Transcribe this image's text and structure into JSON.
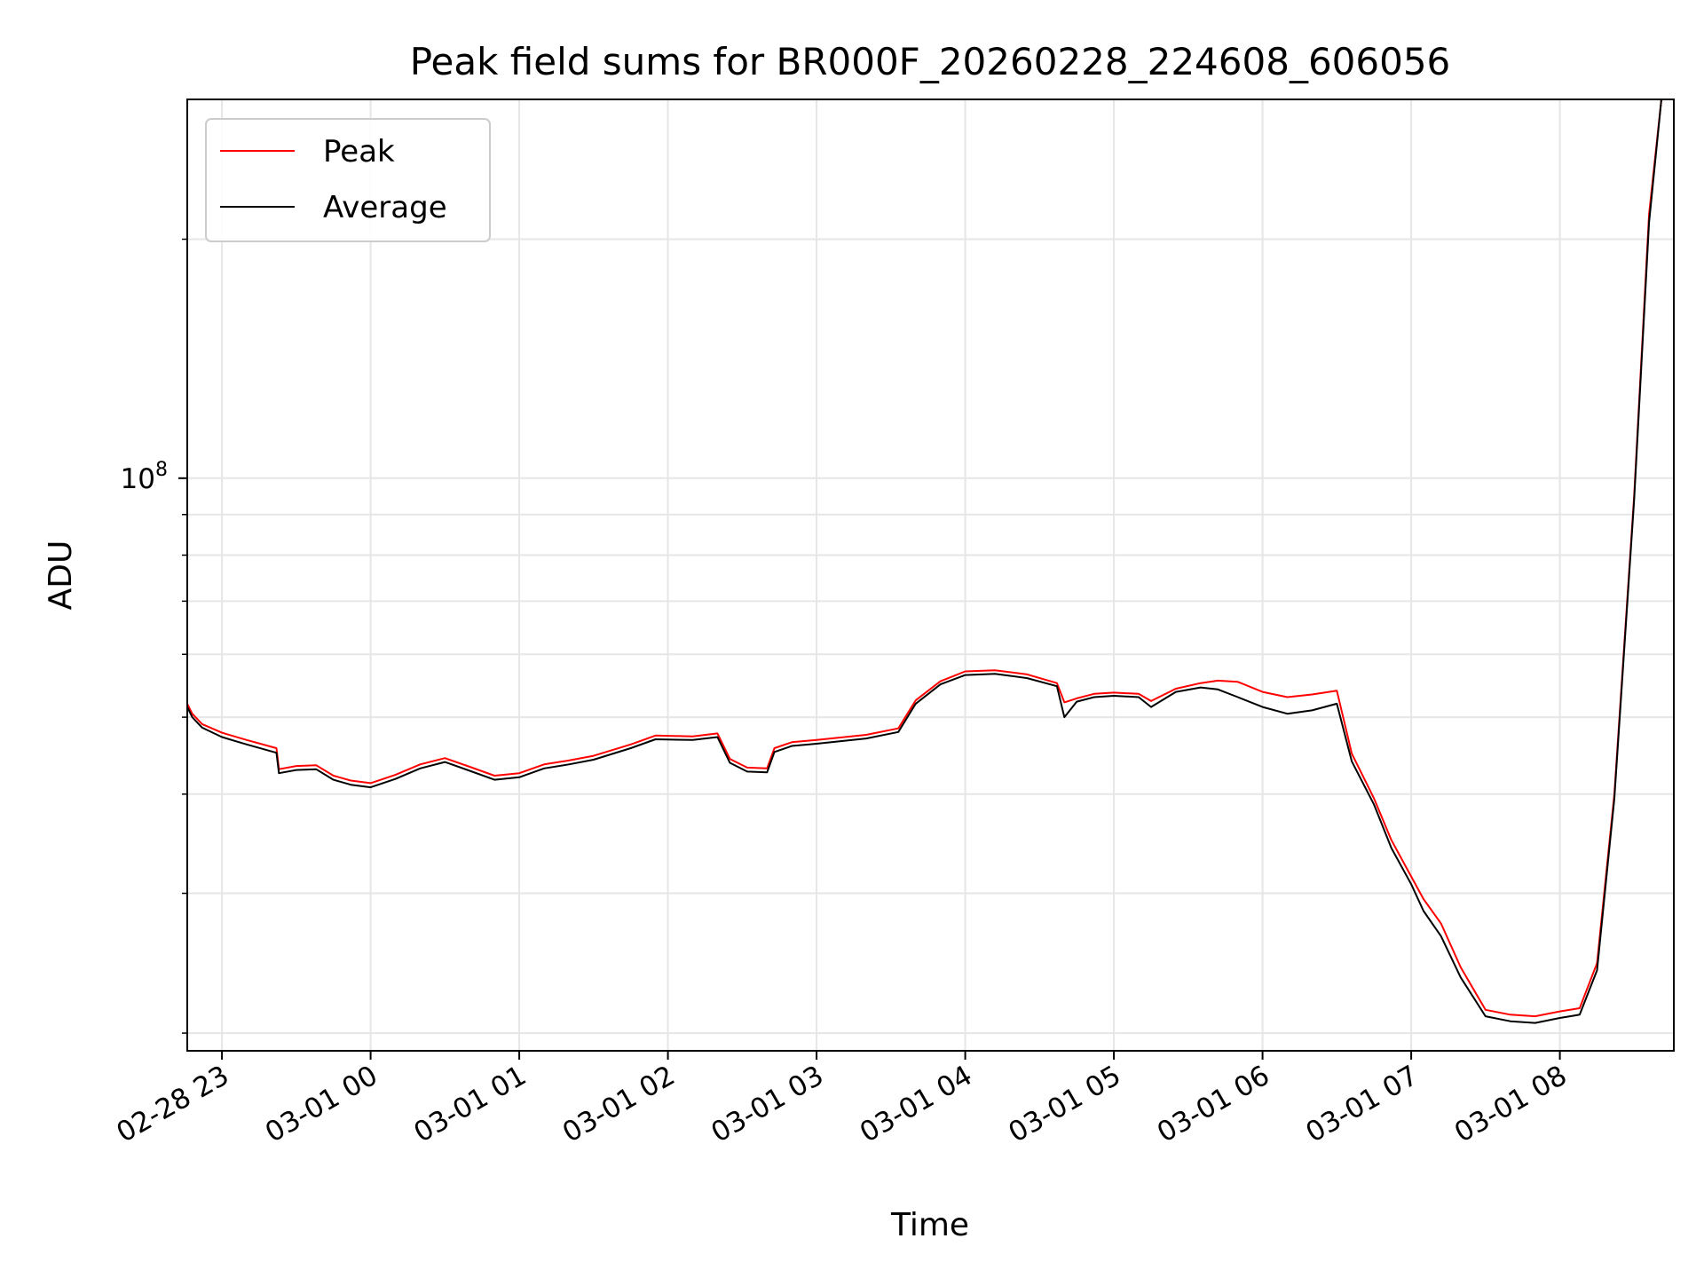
{
  "chart_data": {
    "type": "line",
    "title": "Peak field sums for BR000F_20260228_224608_606056",
    "xlabel": "Time",
    "ylabel": "ADU",
    "yscale": "log",
    "grid": true,
    "legend_position": "top-left",
    "xlim": [
      "2026-02-28 22:46",
      "2026-03-01 08:46"
    ],
    "ylim": [
      19000000,
      300000000
    ],
    "x_ticks": [
      {
        "value": "2026-02-28 23:00",
        "label": "02-28 23"
      },
      {
        "value": "2026-03-01 00:00",
        "label": "03-01 00"
      },
      {
        "value": "2026-03-01 01:00",
        "label": "03-01 01"
      },
      {
        "value": "2026-03-01 02:00",
        "label": "03-01 02"
      },
      {
        "value": "2026-03-01 03:00",
        "label": "03-01 03"
      },
      {
        "value": "2026-03-01 04:00",
        "label": "03-01 04"
      },
      {
        "value": "2026-03-01 05:00",
        "label": "03-01 05"
      },
      {
        "value": "2026-03-01 06:00",
        "label": "03-01 06"
      },
      {
        "value": "2026-03-01 07:00",
        "label": "03-01 07"
      },
      {
        "value": "2026-03-01 08:00",
        "label": "03-01 08"
      }
    ],
    "y_major_ticks": [
      {
        "value": 100000000,
        "base": "10",
        "exponent": "8"
      }
    ],
    "y_minor_ticks": [
      20000000,
      30000000,
      40000000,
      50000000,
      60000000,
      70000000,
      80000000,
      90000000,
      200000000
    ],
    "series": [
      {
        "name": "Peak",
        "color": "#ff0000",
        "x": [
          "2026-02-28 22:46",
          "2026-02-28 22:48",
          "2026-02-28 22:52",
          "2026-02-28 23:00",
          "2026-02-28 23:10",
          "2026-02-28 23:22",
          "2026-02-28 23:23",
          "2026-02-28 23:30",
          "2026-02-28 23:38",
          "2026-02-28 23:45",
          "2026-02-28 23:52",
          "2026-03-01 00:00",
          "2026-03-01 00:10",
          "2026-03-01 00:20",
          "2026-03-01 00:30",
          "2026-03-01 00:40",
          "2026-03-01 00:50",
          "2026-03-01 01:00",
          "2026-03-01 01:10",
          "2026-03-01 01:20",
          "2026-03-01 01:30",
          "2026-03-01 01:45",
          "2026-03-01 01:55",
          "2026-03-01 02:10",
          "2026-03-01 02:20",
          "2026-03-01 02:25",
          "2026-03-01 02:32",
          "2026-03-01 02:40",
          "2026-03-01 02:43",
          "2026-03-01 02:50",
          "2026-03-01 03:00",
          "2026-03-01 03:20",
          "2026-03-01 03:33",
          "2026-03-01 03:40",
          "2026-03-01 03:50",
          "2026-03-01 04:00",
          "2026-03-01 04:12",
          "2026-03-01 04:25",
          "2026-03-01 04:37",
          "2026-03-01 04:40",
          "2026-03-01 04:45",
          "2026-03-01 04:52",
          "2026-03-01 05:00",
          "2026-03-01 05:10",
          "2026-03-01 05:15",
          "2026-03-01 05:25",
          "2026-03-01 05:35",
          "2026-03-01 05:42",
          "2026-03-01 05:50",
          "2026-03-01 06:00",
          "2026-03-01 06:10",
          "2026-03-01 06:20",
          "2026-03-01 06:30",
          "2026-03-01 06:36",
          "2026-03-01 06:45",
          "2026-03-01 06:52",
          "2026-03-01 07:00",
          "2026-03-01 07:05",
          "2026-03-01 07:12",
          "2026-03-01 07:20",
          "2026-03-01 07:30",
          "2026-03-01 07:40",
          "2026-03-01 07:50",
          "2026-03-01 08:00",
          "2026-03-01 08:08",
          "2026-03-01 08:15",
          "2026-03-01 08:22",
          "2026-03-01 08:30",
          "2026-03-01 08:36",
          "2026-03-01 08:41"
        ],
        "y": [
          52000000,
          50500000,
          49000000,
          47800000,
          46800000,
          45700000,
          43000000,
          43400000,
          43500000,
          42200000,
          41600000,
          41300000,
          42300000,
          43600000,
          44400000,
          43300000,
          42200000,
          42500000,
          43600000,
          44100000,
          44700000,
          46200000,
          47400000,
          47300000,
          47700000,
          44300000,
          43200000,
          43100000,
          45700000,
          46500000,
          46800000,
          47500000,
          48400000,
          52500000,
          55500000,
          57100000,
          57300000,
          56600000,
          55200000,
          52200000,
          52800000,
          53500000,
          53700000,
          53500000,
          52400000,
          54300000,
          55200000,
          55600000,
          55400000,
          53800000,
          53000000,
          53400000,
          54000000,
          45000000,
          39500000,
          35000000,
          31500000,
          29500000,
          27500000,
          24200000,
          21400000,
          21100000,
          21000000,
          21300000,
          21500000,
          24500000,
          40000000,
          95000000,
          215000000,
          300000000
        ]
      },
      {
        "name": "Average",
        "color": "#000000",
        "x": [
          "2026-02-28 22:46",
          "2026-02-28 22:48",
          "2026-02-28 22:52",
          "2026-02-28 23:00",
          "2026-02-28 23:10",
          "2026-02-28 23:22",
          "2026-02-28 23:23",
          "2026-02-28 23:30",
          "2026-02-28 23:38",
          "2026-02-28 23:45",
          "2026-02-28 23:52",
          "2026-03-01 00:00",
          "2026-03-01 00:10",
          "2026-03-01 00:20",
          "2026-03-01 00:30",
          "2026-03-01 00:40",
          "2026-03-01 00:50",
          "2026-03-01 01:00",
          "2026-03-01 01:10",
          "2026-03-01 01:20",
          "2026-03-01 01:30",
          "2026-03-01 01:45",
          "2026-03-01 01:55",
          "2026-03-01 02:10",
          "2026-03-01 02:20",
          "2026-03-01 02:25",
          "2026-03-01 02:32",
          "2026-03-01 02:40",
          "2026-03-01 02:43",
          "2026-03-01 02:50",
          "2026-03-01 03:00",
          "2026-03-01 03:20",
          "2026-03-01 03:33",
          "2026-03-01 03:40",
          "2026-03-01 03:50",
          "2026-03-01 04:00",
          "2026-03-01 04:12",
          "2026-03-01 04:25",
          "2026-03-01 04:37",
          "2026-03-01 04:40",
          "2026-03-01 04:45",
          "2026-03-01 04:52",
          "2026-03-01 05:00",
          "2026-03-01 05:10",
          "2026-03-01 05:15",
          "2026-03-01 05:25",
          "2026-03-01 05:35",
          "2026-03-01 05:42",
          "2026-03-01 05:50",
          "2026-03-01 06:00",
          "2026-03-01 06:10",
          "2026-03-01 06:20",
          "2026-03-01 06:30",
          "2026-03-01 06:36",
          "2026-03-01 06:45",
          "2026-03-01 06:52",
          "2026-03-01 07:00",
          "2026-03-01 07:05",
          "2026-03-01 07:12",
          "2026-03-01 07:20",
          "2026-03-01 07:30",
          "2026-03-01 07:40",
          "2026-03-01 07:50",
          "2026-03-01 08:00",
          "2026-03-01 08:08",
          "2026-03-01 08:15",
          "2026-03-01 08:22",
          "2026-03-01 08:30",
          "2026-03-01 08:36",
          "2026-03-01 08:41"
        ],
        "y": [
          51500000,
          50000000,
          48500000,
          47200000,
          46200000,
          45100000,
          42500000,
          42900000,
          43000000,
          41700000,
          41100000,
          40800000,
          41800000,
          43100000,
          43900000,
          42800000,
          41700000,
          42000000,
          43100000,
          43600000,
          44200000,
          45700000,
          46900000,
          46800000,
          47200000,
          43800000,
          42700000,
          42600000,
          45200000,
          46000000,
          46300000,
          47000000,
          47900000,
          52000000,
          55000000,
          56500000,
          56700000,
          56000000,
          54700000,
          50000000,
          52300000,
          53000000,
          53200000,
          53000000,
          51500000,
          53800000,
          54500000,
          54200000,
          53000000,
          51500000,
          50500000,
          51000000,
          52000000,
          44000000,
          38800000,
          34200000,
          30800000,
          28500000,
          26500000,
          23500000,
          21000000,
          20700000,
          20600000,
          20900000,
          21100000,
          24000000,
          39500000,
          94000000,
          210000000,
          300000000
        ]
      }
    ]
  }
}
